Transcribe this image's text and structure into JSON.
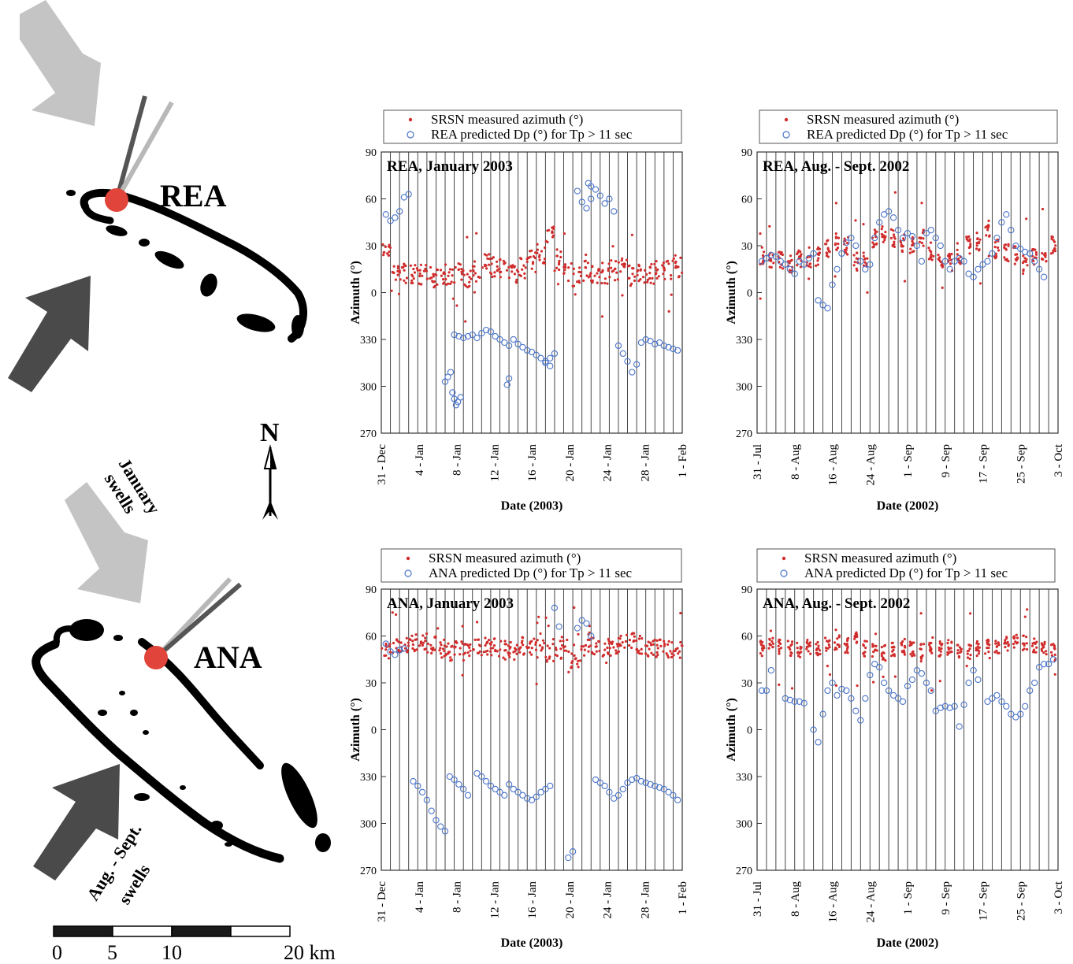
{
  "colors": {
    "measured": "#d12d2d",
    "predicted": "#4a74c9",
    "island": "#000000",
    "site": "#e0443a",
    "light_arrow": "#c4c4c4",
    "dark_arrow": "#4a4a4a",
    "spike_dark": "#555555",
    "spike_light": "#b8b8b8"
  },
  "map": {
    "site_top": "REA",
    "site_bottom": "ANA",
    "north": "N",
    "swell_jan_line1": "January",
    "swell_jan_line2": "swells",
    "swell_aug_line1": "Aug. - Sept.",
    "swell_aug_line2": "swells",
    "scale_labels": [
      "0",
      "5",
      "10",
      "20 km"
    ]
  },
  "legend_entries": {
    "measured": "SRSN measured azimuth (°)",
    "pred_rea": "REA predicted  Dp (°) for Tp > 11 sec",
    "pred_ana": "ANA predicted  Dp (°) for Tp > 11 sec"
  },
  "chart_data": [
    {
      "id": "rea_jan",
      "type": "scatter",
      "title": "REA, January 2003",
      "xlabel": "Date (2003)",
      "ylabel": "Azimuth (°)",
      "yticks": [
        "90",
        "60",
        "30",
        "0",
        "330",
        "300",
        "270"
      ],
      "ylim": [
        -90,
        90
      ],
      "xticks": [
        "31 - Dec",
        "4 - Jan",
        "8 - Jan",
        "12 - Jan",
        "16 - Jan",
        "20 - Jan",
        "24 - Jan",
        "28 - Jan",
        "1 - Feb"
      ],
      "xlim": [
        0,
        33
      ],
      "grid": "vertical daily lines",
      "legend_position": "top",
      "series": [
        {
          "name": "SRSN measured azimuth (°)",
          "marker": "dot",
          "x": [
            0.5,
            1.5,
            2.5,
            3.5,
            4.5,
            5.5,
            6.5,
            7.5,
            8.5,
            9.5,
            10.5,
            11.5,
            12.5,
            13.5,
            14.5,
            15.5,
            16.5,
            17.5,
            18.5,
            19.5,
            20.5,
            21.5,
            22.5,
            23.5,
            24.5,
            25.5,
            26.5,
            27.5,
            28.5,
            29.5,
            30.5,
            31.5,
            32.5
          ],
          "y": [
            27,
            14,
            12,
            13,
            11,
            10,
            9,
            11,
            12,
            10,
            14,
            18,
            17,
            15,
            12,
            16,
            20,
            25,
            38,
            22,
            15,
            11,
            14,
            13,
            12,
            14,
            16,
            11,
            13,
            12,
            15,
            14,
            16
          ],
          "spread": [
            5,
            7,
            7,
            7,
            7,
            7,
            7,
            7,
            7,
            7,
            7,
            7,
            7,
            7,
            7,
            7,
            7,
            7,
            6,
            8,
            8,
            7,
            7,
            7,
            7,
            7,
            7,
            7,
            7,
            7,
            7,
            7,
            7
          ]
        },
        {
          "name": "REA predicted  Dp (°) for Tp > 11 sec",
          "marker": "open-circle",
          "x": [
            0.5,
            1.0,
            1.5,
            2.0,
            2.5,
            3.0,
            7.0,
            7.3,
            7.6,
            7.8,
            8.0,
            8.2,
            8.4,
            8.7,
            8.0,
            8.5,
            9.0,
            9.5,
            10.0,
            10.5,
            11.0,
            11.5,
            12.0,
            12.5,
            13.0,
            13.5,
            14.0,
            13.8,
            14.0,
            14.5,
            15.0,
            15.5,
            16.0,
            16.5,
            17.0,
            17.5,
            18.0,
            18.5,
            18.0,
            18.5,
            19.0,
            21.5,
            22.0,
            22.5,
            23.0,
            22.7,
            23.0,
            23.5,
            24.0,
            24.5,
            25.0,
            25.5,
            26.0,
            26.5,
            27.0,
            27.5,
            28.0,
            28.5,
            29.0,
            29.5,
            30.0,
            30.5,
            31.0,
            31.5,
            32.0,
            32.5
          ],
          "y": [
            50,
            46,
            48,
            52,
            61,
            63,
            -57,
            -54,
            -51,
            -64,
            -68,
            -72,
            -70,
            -67,
            -27,
            -28,
            -29,
            -28,
            -27,
            -29,
            -26,
            -24,
            -25,
            -28,
            -30,
            -32,
            -34,
            -59,
            -55,
            -30,
            -33,
            -35,
            -37,
            -38,
            -40,
            -42,
            -44,
            -47,
            -45,
            -42,
            -39,
            65,
            58,
            54,
            60,
            70,
            68,
            66,
            62,
            57,
            60,
            52,
            -34,
            -39,
            -44,
            -51,
            -46,
            -32,
            -30,
            -31,
            -33,
            -32,
            -34,
            -35,
            -36,
            -37
          ]
        }
      ]
    },
    {
      "id": "rea_aug",
      "type": "scatter",
      "title": "REA, Aug. - Sept. 2002",
      "xlabel": "Date (2002)",
      "ylabel": "Azimuth (°)",
      "yticks": [
        "90",
        "60",
        "30",
        "0",
        "330",
        "300",
        "270"
      ],
      "ylim": [
        -90,
        90
      ],
      "xticks": [
        "31 - Jul",
        "8 - Aug",
        "16 - Aug",
        "24 - Aug",
        "1 - Sep",
        "9 - Sep",
        "17 - Sep",
        "25 - Sep",
        "3 - Oct"
      ],
      "xlim": [
        0,
        64
      ],
      "grid": "vertical lines every 2 days",
      "legend_position": "top",
      "series": [
        {
          "name": "SRSN measured azimuth (°)",
          "marker": "dot",
          "x": [
            1,
            3,
            5,
            7,
            9,
            11,
            13,
            15,
            17,
            19,
            21,
            23,
            25,
            27,
            29,
            31,
            33,
            35,
            37,
            39,
            41,
            43,
            45,
            47,
            49,
            51,
            53,
            55,
            57,
            59,
            61,
            63
          ],
          "y": [
            24,
            22,
            20,
            18,
            22,
            20,
            23,
            28,
            32,
            30,
            20,
            22,
            35,
            38,
            35,
            32,
            30,
            35,
            26,
            22,
            20,
            24,
            30,
            33,
            40,
            28,
            26,
            24,
            18,
            22,
            26,
            30
          ],
          "spread": [
            6,
            6,
            6,
            6,
            6,
            6,
            6,
            6,
            6,
            6,
            6,
            6,
            6,
            6,
            6,
            6,
            6,
            6,
            6,
            6,
            6,
            6,
            6,
            6,
            6,
            6,
            6,
            6,
            6,
            6,
            6,
            6
          ]
        },
        {
          "name": "REA predicted  Dp (°) for Tp > 11 sec",
          "marker": "open-circle",
          "x": [
            1,
            2,
            3,
            4,
            5,
            6,
            7,
            8,
            9,
            10,
            11,
            12,
            13,
            14,
            15,
            16,
            17,
            18,
            19,
            20,
            21,
            22,
            23,
            24,
            25,
            26,
            27,
            28,
            29,
            30,
            31,
            32,
            33,
            34,
            35,
            36,
            37,
            38,
            39,
            40,
            41,
            42,
            43,
            44,
            45,
            46,
            47,
            48,
            49,
            50,
            51,
            52,
            53,
            54,
            55,
            56,
            57,
            58,
            59,
            60,
            61
          ],
          "y": [
            20,
            22,
            24,
            23,
            20,
            18,
            15,
            12,
            20,
            18,
            22,
            25,
            -5,
            -8,
            -10,
            5,
            15,
            25,
            32,
            35,
            30,
            20,
            15,
            18,
            35,
            45,
            50,
            52,
            48,
            40,
            35,
            38,
            36,
            30,
            20,
            38,
            40,
            35,
            30,
            20,
            15,
            20,
            22,
            20,
            12,
            10,
            15,
            18,
            20,
            25,
            35,
            45,
            50,
            40,
            30,
            28,
            26,
            25,
            20,
            15,
            10
          ]
        }
      ]
    },
    {
      "id": "ana_jan",
      "type": "scatter",
      "title": "ANA, January 2003",
      "xlabel": "Date (2003)",
      "ylabel": "Azimuth  (°)",
      "yticks": [
        "90",
        "60",
        "30",
        "0",
        "330",
        "300",
        "270"
      ],
      "ylim": [
        -90,
        90
      ],
      "xticks": [
        "31 - Dec",
        "4 - Jan",
        "8 - Jan",
        "12 - Jan",
        "16 - Jan",
        "20 - Jan",
        "24 - Jan",
        "28 - Jan",
        "1 - Feb"
      ],
      "xlim": [
        0,
        33
      ],
      "grid": "vertical daily lines",
      "legend_position": "top",
      "series": [
        {
          "name": "SRSN measured azimuth (°)",
          "marker": "dot",
          "x": [
            0.5,
            1.5,
            2.5,
            3.5,
            4.5,
            5.5,
            6.5,
            7.5,
            8.5,
            9.5,
            10.5,
            11.5,
            12.5,
            13.5,
            14.5,
            15.5,
            16.5,
            17.5,
            18.5,
            19.5,
            20.5,
            21.5,
            22.5,
            23.5,
            24.5,
            25.5,
            26.5,
            27.5,
            28.5,
            29.5,
            30.5,
            31.5,
            32.5
          ],
          "y": [
            50,
            52,
            55,
            56,
            57,
            54,
            52,
            50,
            51,
            49,
            52,
            54,
            53,
            51,
            50,
            54,
            53,
            52,
            50,
            51,
            48,
            52,
            55,
            54,
            53,
            52,
            55,
            56,
            54,
            53,
            52,
            51,
            50
          ],
          "spread": [
            5,
            6,
            6,
            6,
            6,
            6,
            6,
            6,
            6,
            6,
            6,
            6,
            6,
            6,
            6,
            6,
            6,
            6,
            8,
            10,
            12,
            12,
            8,
            6,
            6,
            6,
            6,
            6,
            6,
            6,
            6,
            6,
            6
          ]
        },
        {
          "name": "ANA predicted  Dp (°) for Tp > 11 sec",
          "marker": "open-circle",
          "x": [
            0.5,
            1.0,
            1.5,
            2.0,
            2.5,
            3.5,
            4.0,
            4.5,
            5.0,
            5.5,
            6.0,
            6.5,
            7.0,
            7.5,
            8.0,
            8.5,
            9.0,
            9.5,
            10.5,
            11.0,
            11.5,
            12.0,
            12.5,
            13.0,
            13.5,
            14.0,
            14.5,
            15.0,
            15.5,
            16.0,
            16.5,
            17.0,
            17.5,
            18.0,
            18.5,
            19.0,
            19.5,
            20.5,
            21.0,
            21.5,
            22.0,
            22.5,
            23.0,
            23.5,
            24.0,
            24.5,
            25.0,
            25.5,
            26.0,
            26.5,
            27.0,
            27.5,
            28.0,
            28.5,
            29.0,
            29.5,
            30.0,
            30.5,
            31.0,
            31.5,
            32.0,
            32.5
          ],
          "y": [
            55,
            50,
            48,
            51,
            52,
            -33,
            -36,
            -40,
            -45,
            -52,
            -58,
            -62,
            -65,
            -30,
            -32,
            -35,
            -38,
            -42,
            -28,
            -30,
            -33,
            -36,
            -38,
            -40,
            -42,
            -35,
            -38,
            -40,
            -42,
            -44,
            -45,
            -43,
            -40,
            -38,
            -36,
            78,
            66,
            -82,
            -78,
            65,
            70,
            68,
            60,
            -32,
            -34,
            -36,
            -40,
            -44,
            -42,
            -38,
            -34,
            -32,
            -31,
            -33,
            -34,
            -35,
            -36,
            -37,
            -38,
            -40,
            -42,
            -45
          ]
        }
      ]
    },
    {
      "id": "ana_aug",
      "type": "scatter",
      "title": "ANA, Aug. - Sept. 2002",
      "xlabel": "Date (2002)",
      "ylabel": "Azimuth  (°)",
      "yticks": [
        "90",
        "60",
        "30",
        "0",
        "330",
        "300",
        "270"
      ],
      "ylim": [
        -90,
        90
      ],
      "xticks": [
        "31 - Jul",
        "8 - Aug",
        "16 - Aug",
        "24 - Aug",
        "1 - Sep",
        "9 - Sep",
        "17 - Sep",
        "25 - Sep",
        "3 - Oct"
      ],
      "xlim": [
        0,
        64
      ],
      "grid": "vertical lines every 2 days",
      "legend_position": "top",
      "series": [
        {
          "name": "SRSN measured azimuth (°)",
          "marker": "dot",
          "x": [
            1,
            3,
            5,
            7,
            9,
            11,
            13,
            15,
            17,
            19,
            21,
            23,
            25,
            27,
            29,
            31,
            33,
            35,
            37,
            39,
            41,
            43,
            45,
            47,
            49,
            51,
            53,
            55,
            57,
            59,
            61,
            63
          ],
          "y": [
            52,
            54,
            53,
            52,
            51,
            53,
            52,
            55,
            56,
            54,
            58,
            52,
            50,
            49,
            51,
            53,
            52,
            50,
            54,
            52,
            53,
            51,
            50,
            52,
            53,
            54,
            55,
            57,
            56,
            54,
            52,
            50
          ],
          "spread": [
            5,
            5,
            5,
            5,
            5,
            5,
            5,
            5,
            5,
            5,
            5,
            5,
            5,
            5,
            5,
            5,
            5,
            5,
            5,
            5,
            5,
            5,
            5,
            5,
            5,
            5,
            5,
            5,
            5,
            5,
            5,
            5
          ]
        },
        {
          "name": "ANA predicted  Dp (°) for Tp > 11 sec",
          "marker": "open-circle",
          "x": [
            1,
            2,
            3,
            6,
            7,
            8,
            9,
            10,
            12,
            13,
            14,
            15,
            16,
            17,
            18,
            19,
            20,
            21,
            22,
            23,
            24,
            25,
            26,
            27,
            28,
            29,
            30,
            31,
            32,
            33,
            34,
            35,
            36,
            37,
            38,
            39,
            40,
            41,
            42,
            43,
            44,
            45,
            46,
            47,
            49,
            50,
            51,
            52,
            53,
            54,
            55,
            56,
            57,
            58,
            59,
            60,
            61,
            62,
            63
          ],
          "y": [
            25,
            25,
            38,
            20,
            19,
            18,
            18,
            17,
            0,
            -8,
            10,
            25,
            30,
            22,
            26,
            25,
            20,
            12,
            6,
            20,
            35,
            42,
            40,
            30,
            25,
            22,
            20,
            18,
            28,
            32,
            38,
            36,
            30,
            25,
            12,
            14,
            15,
            14,
            15,
            2,
            16,
            30,
            38,
            32,
            18,
            20,
            22,
            18,
            15,
            10,
            8,
            10,
            15,
            25,
            30,
            40,
            42,
            42,
            45
          ]
        }
      ]
    }
  ]
}
